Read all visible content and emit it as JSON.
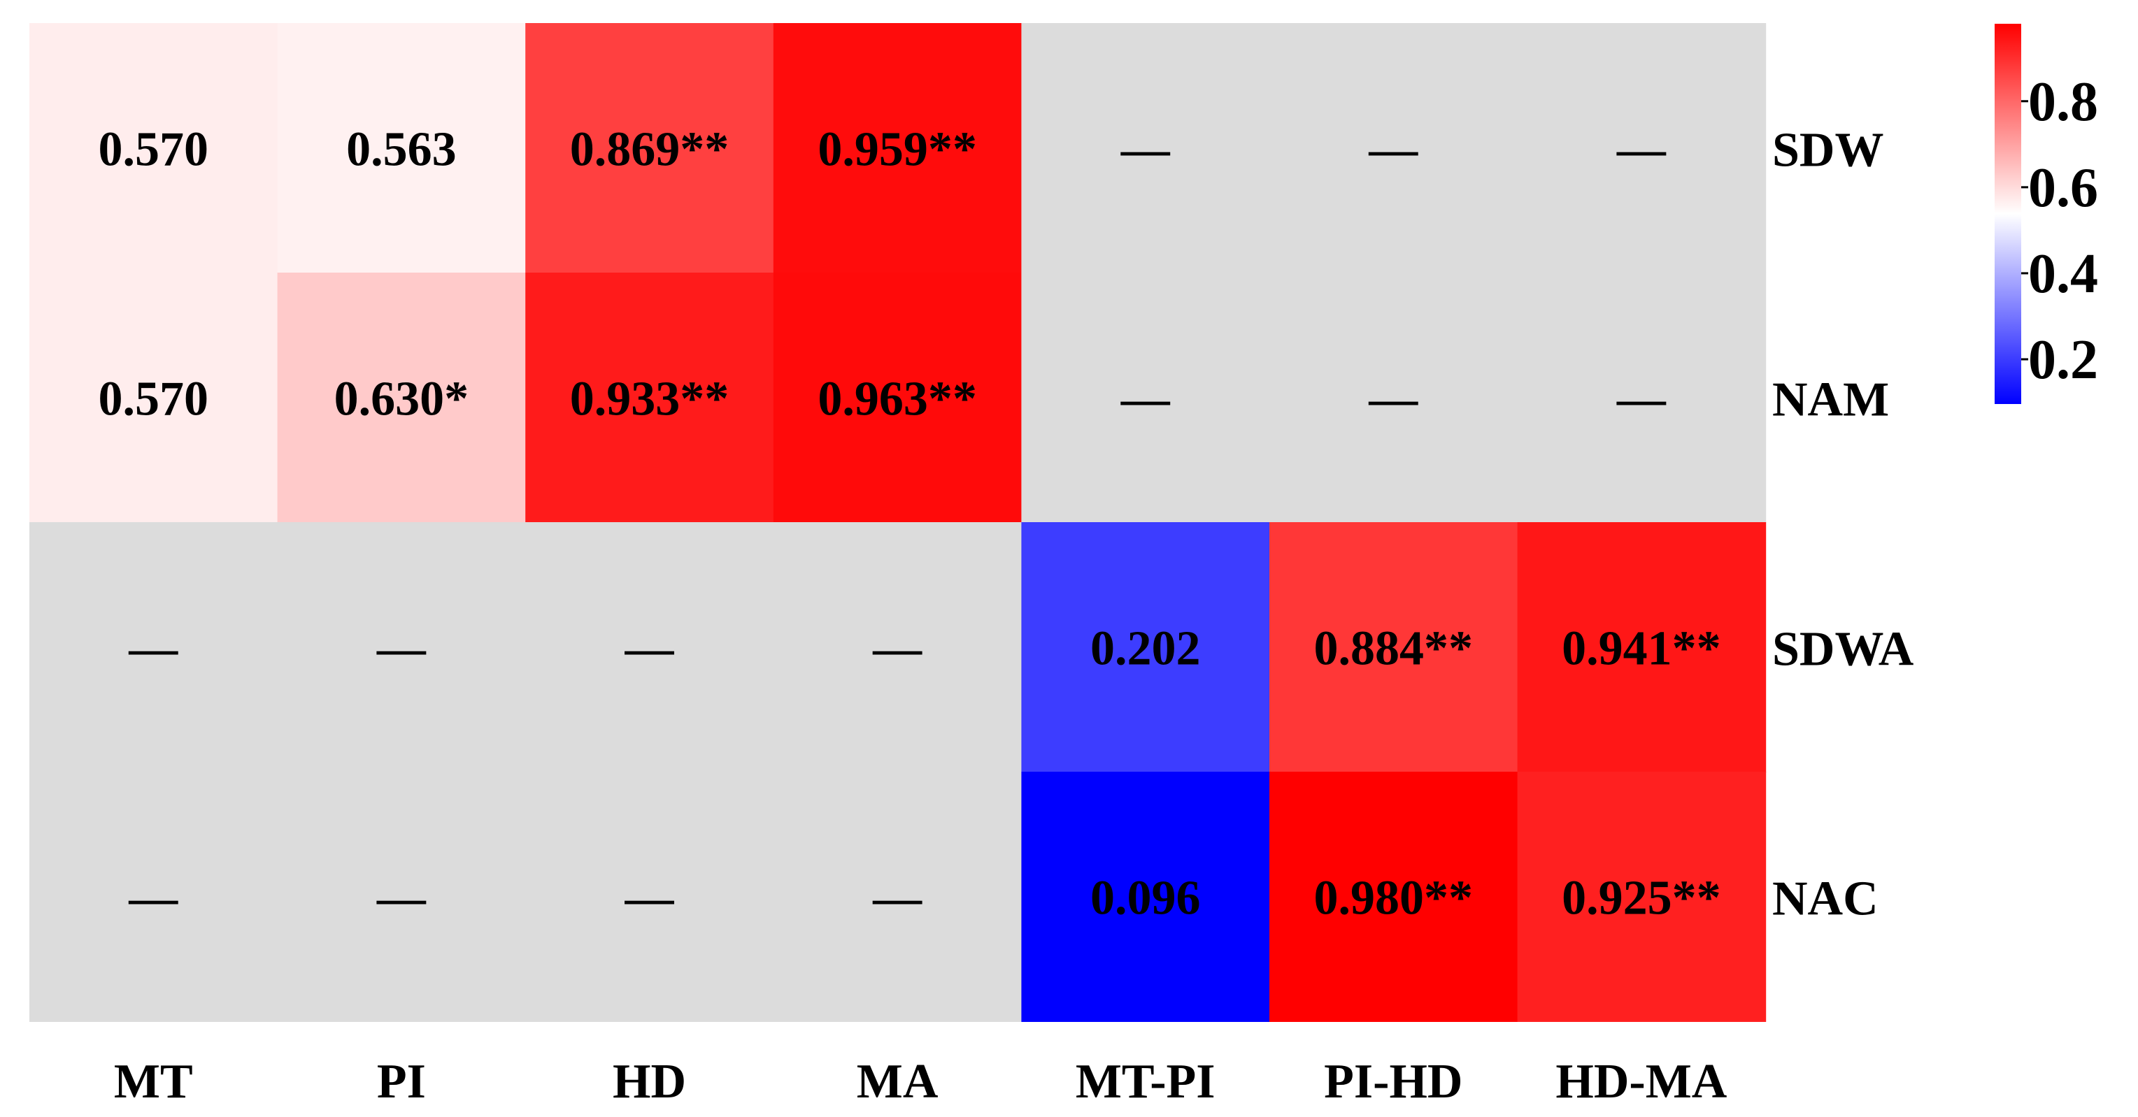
{
  "chart_data": {
    "type": "heatmap",
    "columns": [
      "MT",
      "PI",
      "HD",
      "MA",
      "MT-PI",
      "PI-HD",
      "HD-MA"
    ],
    "rows": [
      "SDW",
      "NAM",
      "SDWA",
      "NAC"
    ],
    "values": [
      [
        0.57,
        0.563,
        0.869,
        0.959,
        null,
        null,
        null
      ],
      [
        0.57,
        0.63,
        0.933,
        0.963,
        null,
        null,
        null
      ],
      [
        null,
        null,
        null,
        null,
        0.202,
        0.884,
        0.941
      ],
      [
        null,
        null,
        null,
        null,
        0.096,
        0.98,
        0.925
      ]
    ],
    "labels": [
      [
        "0.570",
        "0.563",
        "0.869**",
        "0.959**",
        "—",
        "—",
        "—"
      ],
      [
        "0.570",
        "0.630*",
        "0.933**",
        "0.963**",
        "—",
        "—",
        "—"
      ],
      [
        "—",
        "—",
        "—",
        "—",
        "0.202",
        "0.884**",
        "0.941**"
      ],
      [
        "—",
        "—",
        "—",
        "—",
        "0.096",
        "0.980**",
        "0.925**"
      ]
    ],
    "colorbar": {
      "ticks": [
        "0.8",
        "0.6",
        "0.4",
        "0.2"
      ],
      "tick_values": [
        0.8,
        0.6,
        0.4,
        0.2
      ],
      "range": [
        0.096,
        0.98
      ],
      "colors": {
        "low": "#0000ff",
        "mid": "#ffffff",
        "high": "#ff0000",
        "missing": "#dcdcdc"
      }
    }
  }
}
